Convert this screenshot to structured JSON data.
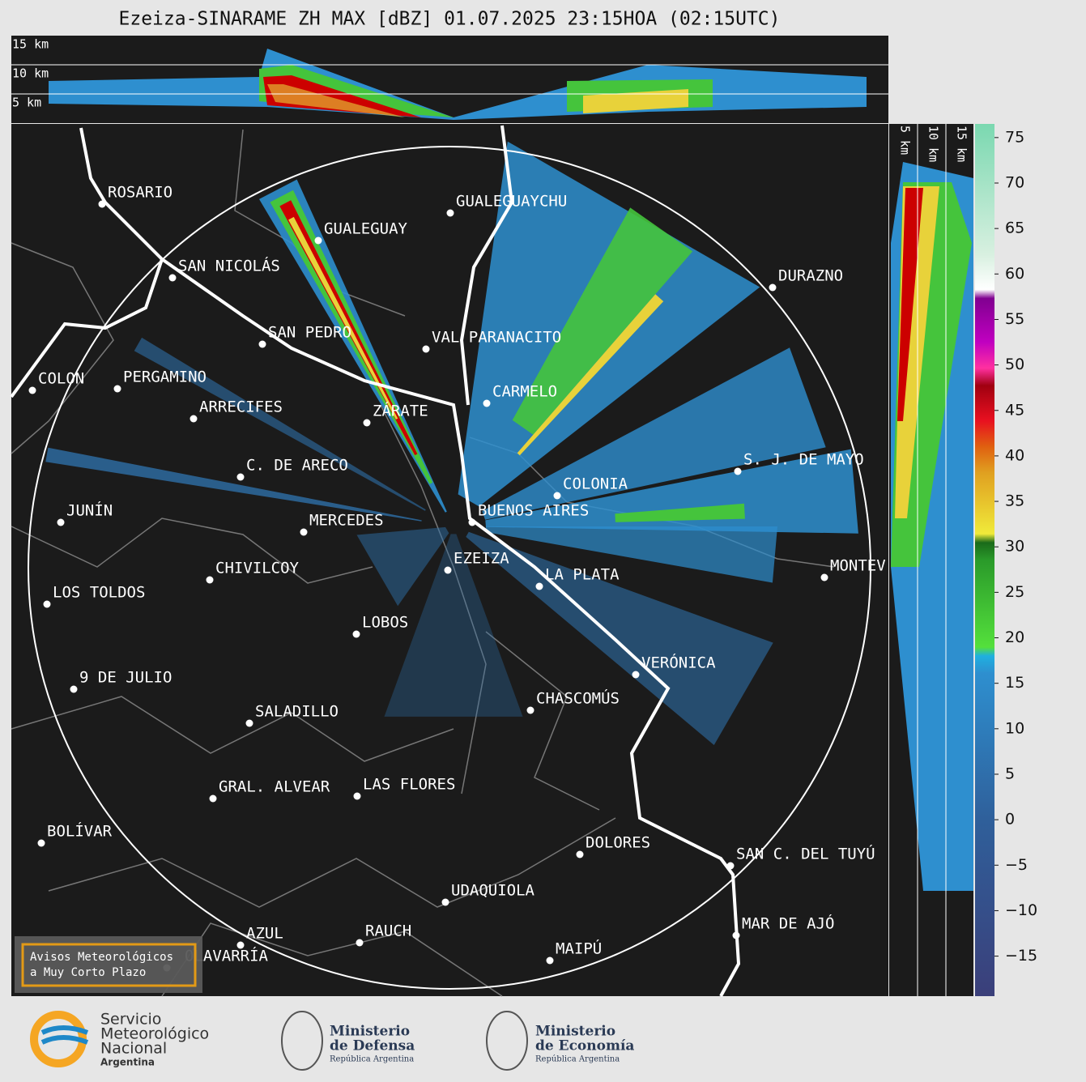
{
  "title": "Ezeiza-SINARAME ZH MAX [dBZ] 01.07.2025 23:15HOA (02:15UTC)",
  "height_panel": {
    "labels": [
      "15 km",
      "10 km",
      "5 km"
    ]
  },
  "side_panel": {
    "labels": [
      "5 km",
      "10 km",
      "15 km"
    ]
  },
  "colorbar": {
    "lim": [
      -19.4,
      76.5
    ],
    "ticks": [
      75,
      70,
      65,
      60,
      55,
      50,
      45,
      40,
      35,
      30,
      25,
      20,
      15,
      10,
      5,
      0,
      {
        "value": -5,
        "label": "−5"
      },
      {
        "value": -10,
        "label": "−10"
      },
      {
        "value": -15,
        "label": "−15"
      }
    ]
  },
  "cities": [
    {
      "name": "ROSARIO"
    },
    {
      "name": "GUALEGUAY"
    },
    {
      "name": "GUALEGUAYCHU"
    },
    {
      "name": "SAN NICOLÁS"
    },
    {
      "name": "DURAZNO"
    },
    {
      "name": "SAN PEDRO"
    },
    {
      "name": "VAL PARANACITO"
    },
    {
      "name": "COLON"
    },
    {
      "name": "PERGAMINO"
    },
    {
      "name": "CARMELO"
    },
    {
      "name": "ARRECIFES"
    },
    {
      "name": "ZÁRATE"
    },
    {
      "name": "S. J. DE MAYO"
    },
    {
      "name": "C. DE ARECO"
    },
    {
      "name": "COLONIA"
    },
    {
      "name": "BUENOS AIRES"
    },
    {
      "name": "JUNÍN"
    },
    {
      "name": "MERCEDES"
    },
    {
      "name": "EZEIZA"
    },
    {
      "name": "MONTEV"
    },
    {
      "name": "CHIVILCOY"
    },
    {
      "name": "LA PLATA"
    },
    {
      "name": "LOS TOLDOS"
    },
    {
      "name": "LOBOS"
    },
    {
      "name": "VERÓNICA"
    },
    {
      "name": "9 DE JULIO"
    },
    {
      "name": "CHASCOMÚS"
    },
    {
      "name": "SALADILLO"
    },
    {
      "name": "GRAL. ALVEAR"
    },
    {
      "name": "LAS FLORES"
    },
    {
      "name": "BOLÍVAR"
    },
    {
      "name": "DOLORES"
    },
    {
      "name": "SAN C. DEL TUYÚ"
    },
    {
      "name": "UDAQUIOLA"
    },
    {
      "name": "MAR DE AJÓ"
    },
    {
      "name": "AZUL"
    },
    {
      "name": "RAUCH"
    },
    {
      "name": "OLAVARRÍA"
    },
    {
      "name": "MAIPÚ"
    }
  ],
  "notice": {
    "lines": [
      "Avisos Meteorológicos",
      "a Muy Corto Plazo"
    ]
  },
  "logos": {
    "smn": {
      "lines": [
        "Servicio",
        "Meteorológico",
        "Nacional",
        "Argentina"
      ]
    },
    "defensa": {
      "lines": [
        "Ministerio",
        "de Defensa",
        "República Argentina"
      ]
    },
    "economia": {
      "lines": [
        "Ministerio",
        "de Economía",
        "República Argentina"
      ]
    }
  }
}
